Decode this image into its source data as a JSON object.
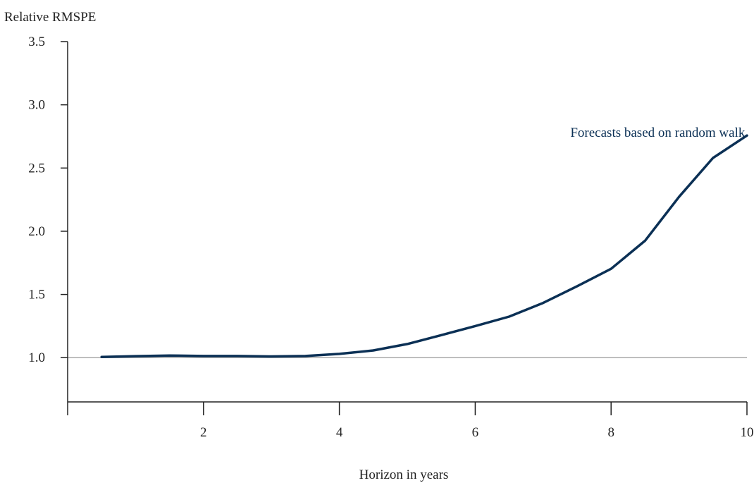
{
  "chart_data": {
    "type": "line",
    "title": "",
    "ylabel": "Relative RMSPE",
    "xlabel": "Horizon in years",
    "xlim": [
      0,
      10
    ],
    "ylim": [
      0.65,
      3.5
    ],
    "x_ticks": [
      2,
      4,
      6,
      8,
      10
    ],
    "y_ticks": [
      1.0,
      1.5,
      2.0,
      2.5,
      3.0,
      3.5
    ],
    "reference_line": {
      "y": 1.0,
      "color": "#aaaaaa"
    },
    "grid": false,
    "series": [
      {
        "name": "Forecasts based on random walk",
        "color": "#0b3055",
        "x": [
          0.5,
          1.0,
          1.5,
          2.0,
          2.5,
          3.0,
          3.5,
          4.0,
          4.5,
          5.0,
          5.5,
          6.0,
          6.5,
          7.0,
          7.5,
          8.0,
          8.5,
          9.0,
          9.5,
          10.0
        ],
        "y": [
          1.005,
          1.012,
          1.017,
          1.013,
          1.013,
          1.01,
          1.013,
          1.03,
          1.057,
          1.108,
          1.178,
          1.25,
          1.325,
          1.433,
          1.565,
          1.703,
          1.925,
          2.272,
          2.58,
          2.757
        ]
      }
    ],
    "annotations": [
      {
        "text": "Forecasts based on random walk",
        "x": 7.4,
        "y": 2.78,
        "color": "#0b3055"
      }
    ]
  }
}
